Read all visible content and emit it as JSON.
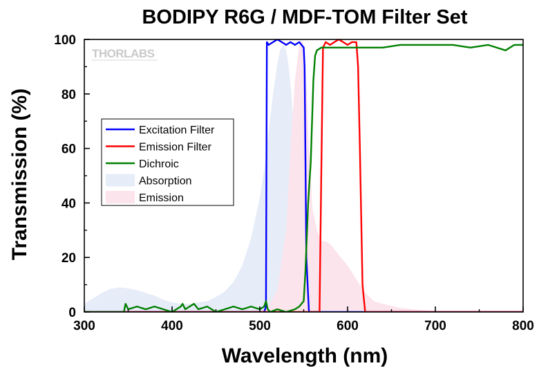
{
  "chart_data": {
    "type": "line",
    "title": "BODIPY R6G / MDF-TOM Filter Set",
    "xlabel": "Wavelength (nm)",
    "ylabel": "Transmission (%)",
    "xlim": [
      300,
      800
    ],
    "ylim": [
      0,
      100
    ],
    "x_ticks": [
      300,
      400,
      500,
      600,
      700,
      800
    ],
    "y_ticks": [
      0,
      20,
      40,
      60,
      80,
      100
    ],
    "x_tick_labels": [
      "300",
      "400",
      "500",
      "600",
      "700",
      "800"
    ],
    "y_tick_labels": [
      "0",
      "20",
      "40",
      "60",
      "80",
      "100"
    ],
    "watermark": "THORLABS",
    "legend_position": "center-left",
    "grid": false,
    "series": [
      {
        "name": "Excitation Filter",
        "kind": "line",
        "color": "#0000ff",
        "x": [
          300,
          505,
          507,
          508,
          510,
          515,
          520,
          525,
          530,
          535,
          540,
          545,
          550,
          551,
          553,
          556,
          560,
          800
        ],
        "y": [
          0,
          0,
          2,
          99,
          98,
          99,
          100,
          99,
          98,
          99,
          98,
          99,
          97,
          90,
          20,
          0,
          0,
          0
        ]
      },
      {
        "name": "Emission Filter",
        "kind": "line",
        "color": "#ff0000",
        "x": [
          300,
          568,
          570,
          572,
          575,
          580,
          585,
          590,
          595,
          600,
          605,
          610,
          612,
          614,
          617,
          620,
          800
        ],
        "y": [
          0,
          0,
          50,
          97,
          99,
          98,
          99,
          100,
          99,
          98,
          99,
          99,
          90,
          60,
          10,
          0,
          0
        ]
      },
      {
        "name": "Dichroic",
        "kind": "line",
        "color": "#008000",
        "x": [
          300,
          345,
          347,
          350,
          360,
          370,
          380,
          390,
          400,
          410,
          412,
          415,
          420,
          425,
          430,
          440,
          450,
          460,
          470,
          480,
          490,
          500,
          505,
          507,
          509,
          512,
          520,
          530,
          540,
          545,
          550,
          552,
          555,
          558,
          561,
          563,
          565,
          570,
          580,
          600,
          620,
          640,
          660,
          680,
          700,
          720,
          740,
          760,
          780,
          790,
          800
        ],
        "y": [
          0,
          0,
          3,
          1,
          2,
          1,
          2,
          1,
          0,
          2,
          3,
          1,
          2,
          3,
          1,
          2,
          0,
          1,
          2,
          1,
          2,
          1,
          2,
          4,
          1,
          0,
          1,
          0,
          1,
          2,
          4,
          15,
          40,
          55,
          85,
          94,
          96,
          97,
          97,
          97,
          97,
          97,
          98,
          98,
          98,
          98,
          97,
          98,
          96,
          98,
          98
        ]
      },
      {
        "name": "Absorption",
        "kind": "area",
        "color": "#e6ecf8",
        "x": [
          300,
          310,
          320,
          330,
          340,
          350,
          360,
          370,
          380,
          390,
          400,
          410,
          420,
          430,
          440,
          450,
          460,
          470,
          480,
          490,
          500,
          505,
          510,
          515,
          520,
          523,
          527,
          530,
          533,
          536,
          540,
          545,
          550,
          555,
          560,
          570,
          580,
          590,
          600
        ],
        "y": [
          3,
          5,
          7,
          8.5,
          9,
          8.7,
          8,
          7,
          6,
          4.5,
          3.5,
          3,
          3,
          3.5,
          4,
          5.5,
          7.5,
          11,
          17,
          27,
          42,
          52,
          66,
          80,
          91,
          96,
          98,
          96,
          90,
          80,
          60,
          35,
          18,
          9,
          5,
          2,
          1,
          0.5,
          0
        ]
      },
      {
        "name": "Emission",
        "kind": "area",
        "color": "#fce4ec",
        "x": [
          500,
          510,
          520,
          530,
          535,
          540,
          545,
          548,
          550,
          553,
          556,
          560,
          565,
          570,
          575,
          580,
          590,
          600,
          610,
          620,
          630,
          640,
          660,
          680,
          700,
          720
        ],
        "y": [
          0,
          2,
          8,
          30,
          60,
          85,
          98,
          100,
          97,
          85,
          60,
          38,
          30,
          26,
          26,
          25,
          21,
          17,
          12,
          7,
          4,
          3,
          1.5,
          0.8,
          0.3,
          0
        ]
      }
    ]
  }
}
